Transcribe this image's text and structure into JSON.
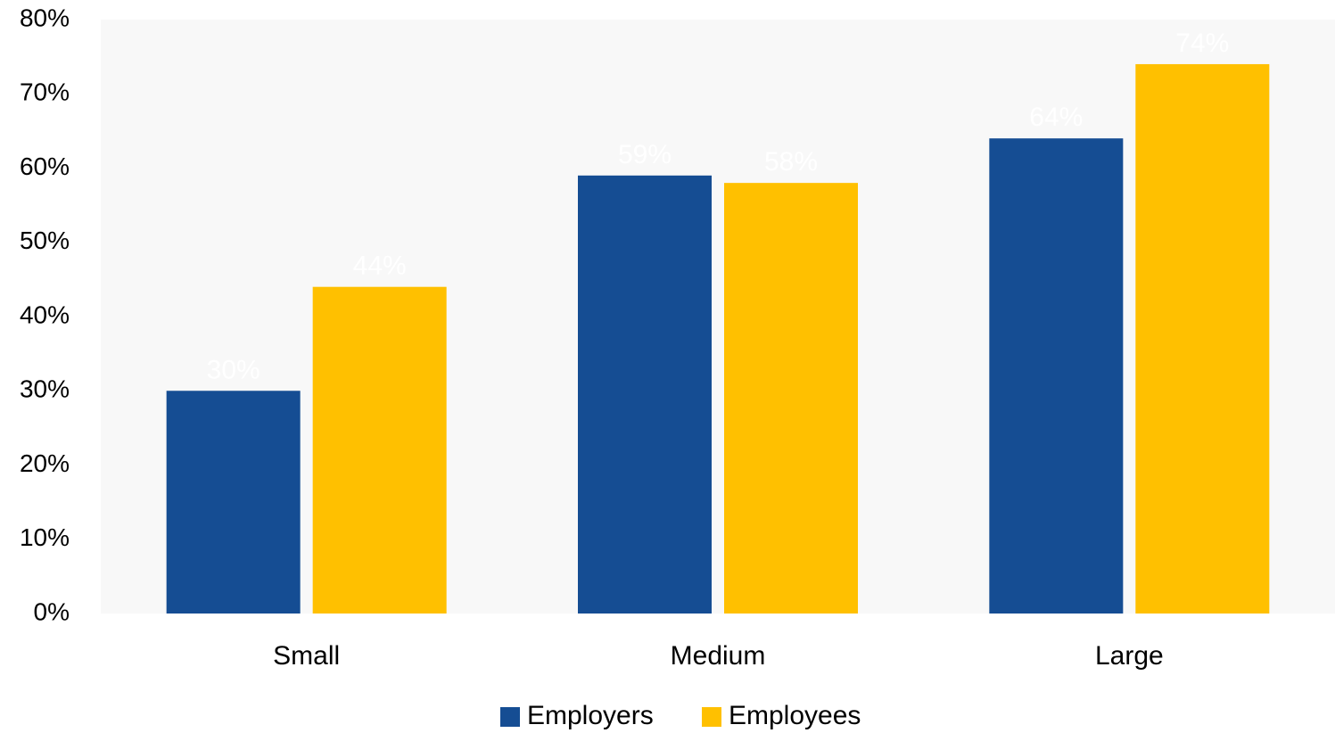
{
  "chart_data": {
    "type": "bar",
    "categories": [
      "Small",
      "Medium",
      "Large"
    ],
    "series": [
      {
        "name": "Employers",
        "values": [
          30,
          59,
          64
        ],
        "color": "#154d93"
      },
      {
        "name": "Employees",
        "values": [
          44,
          58,
          74
        ],
        "color": "#ffc000"
      }
    ],
    "y_ticks": [
      "0%",
      "10%",
      "20%",
      "30%",
      "40%",
      "50%",
      "60%",
      "70%",
      "80%"
    ],
    "data_labels": [
      [
        "30%",
        "59%",
        "64%"
      ],
      [
        "44%",
        "58%",
        "74%"
      ]
    ],
    "ylim": [
      0,
      80
    ],
    "y_unit": "%",
    "grid": false,
    "legend_position": "bottom",
    "plot_background": "#f8f8f8"
  }
}
